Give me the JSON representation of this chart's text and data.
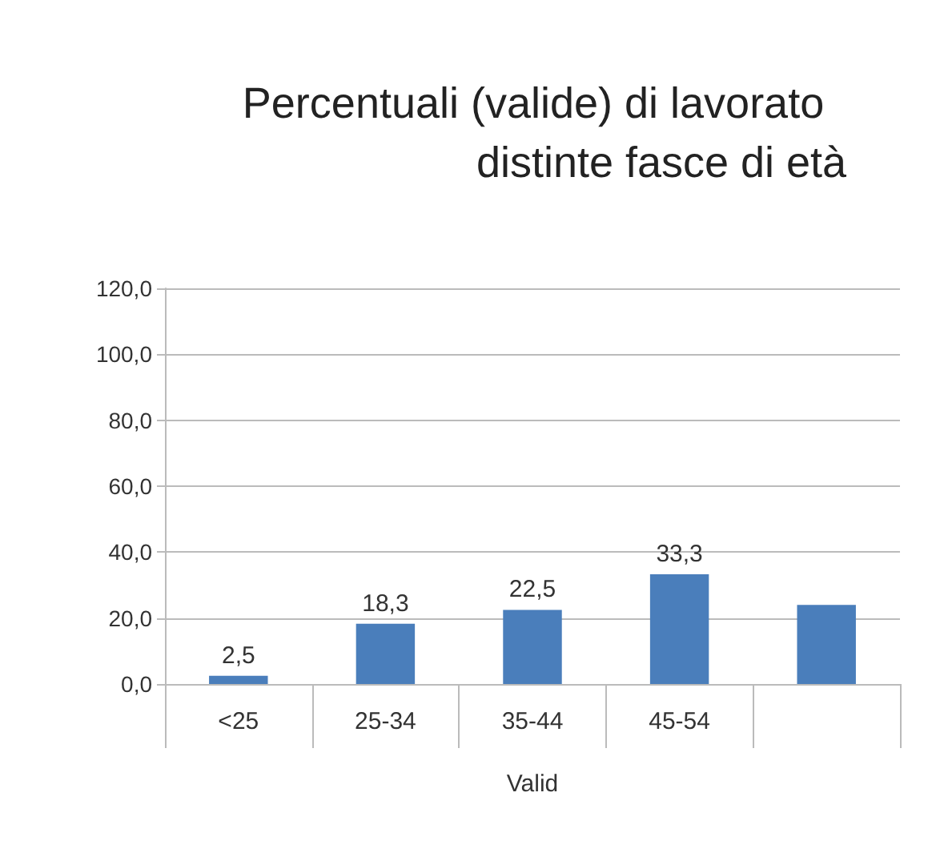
{
  "chart_data": {
    "type": "bar",
    "title": "Percentuali (valide) di lavorato",
    "subtitle": "distinte fasce di età",
    "xlabel": "Valid",
    "categories": [
      "<25",
      "25-34",
      "35-44",
      "45-54",
      null
    ],
    "values": [
      2.5,
      18.3,
      22.5,
      33.3,
      24
    ],
    "value_labels": [
      "2,5",
      "18,3",
      "22,5",
      "33,3",
      null
    ],
    "color": "#4a7ebb",
    "ylim": [
      0,
      120
    ],
    "yticks": [
      {
        "value": 0,
        "label": "0,0"
      },
      {
        "value": 20,
        "label": "20,0"
      },
      {
        "value": 40,
        "label": "40,0"
      },
      {
        "value": 60,
        "label": "60,0"
      },
      {
        "value": 80,
        "label": "80,0"
      },
      {
        "value": 100,
        "label": "100,0"
      },
      {
        "value": 120,
        "label": "120,0"
      }
    ],
    "grid": "y"
  }
}
